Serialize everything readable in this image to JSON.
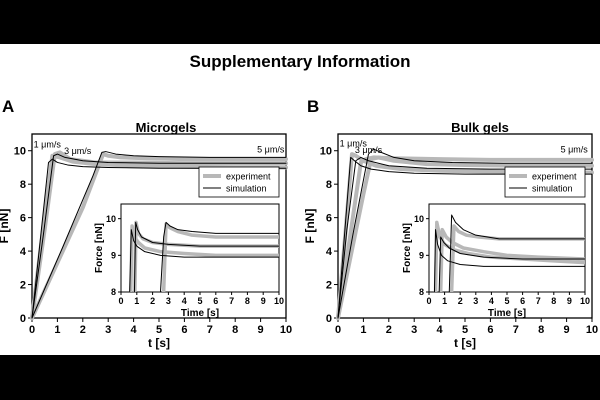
{
  "page": {
    "title": "Supplementary Information"
  },
  "colors": {
    "experiment": "#b8b8b8",
    "simulation": "#000000",
    "background": "#ffffff",
    "frame": "#000000"
  },
  "chart_data": [
    {
      "type": "line",
      "panel_label": "A",
      "title": "Microgels",
      "xlabel": "t [s]",
      "ylabel": "F [nN]",
      "xlim": [
        0,
        10
      ],
      "ylim": [
        0,
        11
      ],
      "xticks": [
        "0",
        "1",
        "2",
        "3",
        "4",
        "5",
        "6",
        "7",
        "8",
        "9",
        "10"
      ],
      "yticks": [
        "0",
        "2",
        "4",
        "6",
        "8",
        "10"
      ],
      "legend": {
        "position": "middle-right",
        "entries": [
          "experiment",
          "simulation"
        ]
      },
      "annotations": [
        {
          "text": "1 μm/s",
          "x": 0.6,
          "y": 10.2
        },
        {
          "text": "3 μm/s",
          "x": 1.8,
          "y": 9.8
        },
        {
          "text": "5 μm/s",
          "x": 9.4,
          "y": 9.9
        }
      ],
      "series": [
        {
          "kind": "experiment",
          "x": [
            0,
            0.4,
            0.8,
            1.1,
            1.6,
            2.5,
            4,
            6,
            8,
            10
          ],
          "y": [
            0,
            4.9,
            9.7,
            9.6,
            9.35,
            9.2,
            9.1,
            9.05,
            9.0,
            9.0
          ]
        },
        {
          "kind": "experiment",
          "x": [
            0,
            0.5,
            0.9,
            1.1,
            1.5,
            2.5,
            4,
            6,
            8,
            10
          ],
          "y": [
            0,
            5.3,
            9.8,
            9.9,
            9.5,
            9.3,
            9.3,
            9.25,
            9.25,
            9.25
          ]
        },
        {
          "kind": "experiment",
          "x": [
            0,
            1,
            2,
            2.8,
            3.0,
            3.5,
            4.5,
            6,
            8,
            10
          ],
          "y": [
            0,
            3.3,
            6.6,
            9.8,
            9.7,
            9.6,
            9.55,
            9.5,
            9.5,
            9.5
          ]
        },
        {
          "kind": "simulation",
          "x": [
            0,
            0.35,
            0.65,
            0.8,
            1.0,
            1.4,
            2,
            3,
            5,
            7,
            10
          ],
          "y": [
            0,
            5,
            9.3,
            9.5,
            9.3,
            9.15,
            9.05,
            9.0,
            8.95,
            8.95,
            8.95
          ]
        },
        {
          "kind": "simulation",
          "x": [
            0,
            0.45,
            0.85,
            1.0,
            1.3,
            2,
            3,
            5,
            7,
            10
          ],
          "y": [
            0,
            5,
            9.7,
            9.8,
            9.6,
            9.4,
            9.3,
            9.25,
            9.25,
            9.25
          ]
        },
        {
          "kind": "simulation",
          "x": [
            0,
            1.2,
            2.4,
            2.75,
            2.9,
            3.3,
            4,
            5,
            7,
            10
          ],
          "y": [
            0,
            4.2,
            8.5,
            9.9,
            9.95,
            9.8,
            9.7,
            9.65,
            9.6,
            9.6
          ]
        }
      ],
      "inset": {
        "xlabel": "Time [s]",
        "ylabel": "Force [nN]",
        "xlim": [
          0,
          10
        ],
        "ylim": [
          8,
          10.4
        ],
        "xticks": [
          "0",
          "1",
          "2",
          "3",
          "4",
          "5",
          "6",
          "7",
          "8",
          "9",
          "10"
        ],
        "yticks": [
          "8",
          "9",
          "10"
        ],
        "series": [
          {
            "kind": "experiment",
            "x": [
              0.62,
              0.7,
              0.85,
              1.1,
              1.5,
              2.5,
              4,
              6,
              8,
              10
            ],
            "y": [
              8,
              9.8,
              9.5,
              9.35,
              9.2,
              9.1,
              9.05,
              9.0,
              9.0,
              9.0
            ]
          },
          {
            "kind": "experiment",
            "x": [
              0.88,
              0.95,
              1.1,
              1.4,
              2,
              3,
              5,
              7,
              10
            ],
            "y": [
              8,
              9.9,
              9.6,
              9.45,
              9.35,
              9.3,
              9.25,
              9.25,
              9.25
            ]
          },
          {
            "kind": "experiment",
            "x": [
              2.7,
              2.85,
              3.1,
              3.6,
              4.5,
              6,
              8,
              10
            ],
            "y": [
              8,
              9.85,
              9.75,
              9.65,
              9.55,
              9.5,
              9.5,
              9.5
            ]
          },
          {
            "kind": "simulation",
            "x": [
              0.55,
              0.65,
              0.8,
              1.0,
              1.5,
              2.5,
              4,
              6,
              8,
              10
            ],
            "y": [
              8,
              9.7,
              9.4,
              9.25,
              9.1,
              9.0,
              8.95,
              8.95,
              8.95,
              8.95
            ]
          },
          {
            "kind": "simulation",
            "x": [
              0.85,
              0.93,
              1.05,
              1.3,
              2,
              3,
              5,
              7,
              10
            ],
            "y": [
              8,
              9.9,
              9.7,
              9.5,
              9.35,
              9.3,
              9.25,
              9.25,
              9.25
            ]
          },
          {
            "kind": "simulation",
            "x": [
              2.5,
              2.7,
              2.85,
              3.1,
              3.6,
              4.5,
              6,
              8,
              10
            ],
            "y": [
              8,
              9.5,
              9.9,
              9.8,
              9.7,
              9.65,
              9.6,
              9.6,
              9.6
            ]
          }
        ]
      }
    },
    {
      "type": "line",
      "panel_label": "B",
      "title": "Bulk gels",
      "xlabel": "t [s]",
      "ylabel": "F [nN]",
      "xlim": [
        0,
        10
      ],
      "ylim": [
        0,
        11
      ],
      "xticks": [
        "0",
        "1",
        "2",
        "3",
        "4",
        "5",
        "6",
        "7",
        "8",
        "9",
        "10"
      ],
      "yticks": [
        "0",
        "2",
        "4",
        "6",
        "8",
        "10"
      ],
      "legend": {
        "position": "middle-right",
        "entries": [
          "experiment",
          "simulation"
        ]
      },
      "annotations": [
        {
          "text": "1 μm/s",
          "x": 0.6,
          "y": 10.25
        },
        {
          "text": "3 μm/s",
          "x": 1.2,
          "y": 9.85
        },
        {
          "text": "5 μm/s",
          "x": 9.3,
          "y": 9.9
        }
      ],
      "series": [
        {
          "kind": "experiment",
          "x": [
            0,
            0.3,
            0.55,
            0.7,
            1.0,
            1.5,
            2.5,
            4,
            6,
            8,
            10
          ],
          "y": [
            0,
            5.2,
            9.8,
            9.7,
            9.4,
            9.1,
            8.9,
            8.8,
            8.75,
            8.7,
            8.7
          ]
        },
        {
          "kind": "experiment",
          "x": [
            0,
            0.5,
            1.0,
            1.3,
            1.6,
            2.2,
            3.5,
            5,
            7,
            10
          ],
          "y": [
            0,
            3.7,
            7.4,
            9.5,
            9.6,
            9.4,
            9.2,
            9.15,
            9.1,
            9.1
          ]
        },
        {
          "kind": "experiment",
          "x": [
            0,
            0.45,
            0.9,
            1.1,
            1.4,
            2.2,
            4,
            6,
            8,
            10
          ],
          "y": [
            0,
            4.6,
            9.3,
            9.5,
            9.6,
            9.55,
            9.5,
            9.45,
            9.45,
            9.45
          ]
        },
        {
          "kind": "simulation",
          "x": [
            0,
            0.3,
            0.5,
            0.65,
            0.9,
            1.3,
            2,
            3,
            5,
            7,
            10
          ],
          "y": [
            0,
            5.8,
            9.6,
            9.4,
            9.1,
            8.9,
            8.75,
            8.65,
            8.6,
            8.6,
            8.6
          ]
        },
        {
          "kind": "simulation",
          "x": [
            0,
            0.6,
            1.2,
            1.4,
            1.7,
            2.2,
            3,
            4.5,
            6.5,
            10
          ],
          "y": [
            0,
            5.1,
            9.8,
            10.1,
            9.9,
            9.6,
            9.4,
            9.3,
            9.25,
            9.25
          ]
        },
        {
          "kind": "simulation",
          "x": [
            0,
            0.35,
            0.7,
            0.9,
            1.2,
            2,
            3.5,
            6,
            10
          ],
          "y": [
            0,
            5.3,
            9.4,
            9.6,
            9.4,
            9.1,
            8.95,
            8.9,
            8.9
          ]
        }
      ],
      "inset": {
        "xlabel": "Time [s]",
        "ylabel": "Force [nN]",
        "xlim": [
          0,
          10
        ],
        "ylim": [
          8,
          10.4
        ],
        "xticks": [
          "0",
          "1",
          "2",
          "3",
          "4",
          "5",
          "6",
          "7",
          "8",
          "9",
          "10"
        ],
        "yticks": [
          "8",
          "9",
          "10"
        ],
        "series": [
          {
            "kind": "experiment",
            "x": [
              0.42,
              0.5,
              0.7,
              1.0,
              1.6,
              2.5,
              4,
              6,
              8,
              10
            ],
            "y": [
              8,
              9.9,
              9.5,
              9.3,
              9.15,
              9.05,
              8.95,
              8.9,
              8.85,
              8.8
            ]
          },
          {
            "kind": "experiment",
            "x": [
              1.45,
              1.6,
              1.9,
              2.4,
              3.2,
              4.5,
              6,
              8,
              10
            ],
            "y": [
              8,
              9.8,
              9.65,
              9.55,
              9.5,
              9.45,
              9.45,
              9.45,
              9.45
            ]
          },
          {
            "kind": "experiment",
            "x": [
              0.75,
              0.85,
              1.1,
              1.5,
              2.2,
              3.5,
              5,
              7,
              10
            ],
            "y": [
              8,
              9.7,
              9.5,
              9.35,
              9.2,
              9.1,
              9.0,
              8.95,
              8.9
            ]
          },
          {
            "kind": "simulation",
            "x": [
              0.35,
              0.42,
              0.55,
              0.8,
              1.2,
              2,
              3.5,
              5,
              7,
              10
            ],
            "y": [
              8,
              9.7,
              9.3,
              9.0,
              8.85,
              8.75,
              8.7,
              8.7,
              8.7,
              8.7
            ]
          },
          {
            "kind": "simulation",
            "x": [
              1.3,
              1.45,
              1.7,
              2.2,
              3,
              4.5,
              6.5,
              10
            ],
            "y": [
              8,
              10.1,
              9.9,
              9.7,
              9.55,
              9.45,
              9.45,
              9.45
            ]
          },
          {
            "kind": "simulation",
            "x": [
              0.65,
              0.75,
              0.95,
              1.3,
              2,
              3.5,
              6,
              10
            ],
            "y": [
              8,
              9.5,
              9.35,
              9.2,
              9.05,
              8.95,
              8.9,
              8.9
            ]
          }
        ]
      }
    }
  ]
}
